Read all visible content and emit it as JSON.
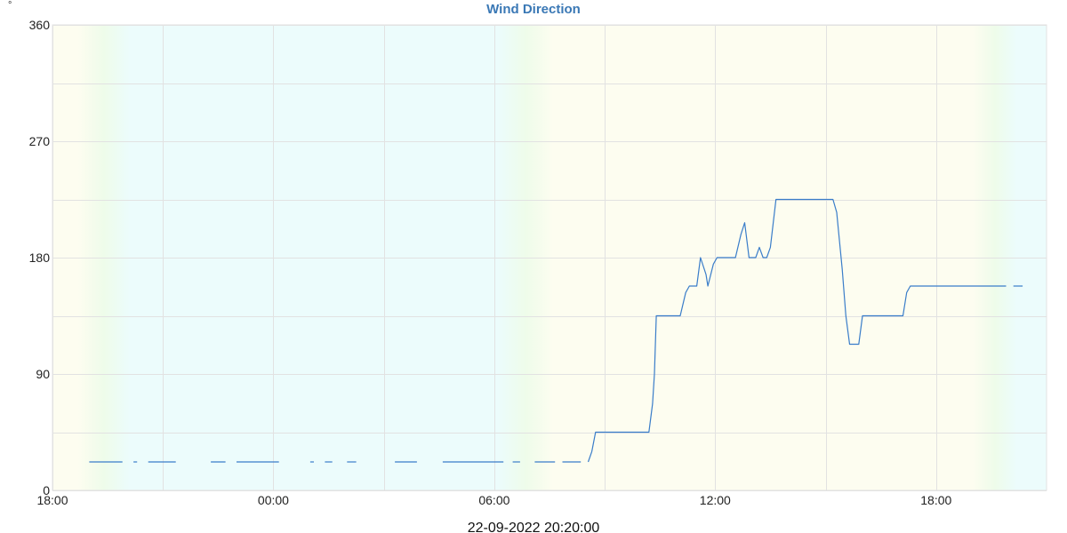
{
  "chart_data": {
    "type": "line",
    "title": "Wind Direction",
    "y_unit": "°",
    "footer_timestamp": "22-09-2022 20:20:00",
    "xlabel": "",
    "ylabel": "",
    "x_unit": "hours",
    "xlim": [
      18,
      45
    ],
    "ylim": [
      0,
      360
    ],
    "grid": true,
    "y_major_ticks": [
      {
        "value": 0,
        "label": "0"
      },
      {
        "value": 90,
        "label": "90"
      },
      {
        "value": 180,
        "label": "180"
      },
      {
        "value": 270,
        "label": "270"
      },
      {
        "value": 360,
        "label": "360"
      }
    ],
    "y_minor_gridlines": [
      45,
      135,
      225,
      315
    ],
    "x_ticks": [
      {
        "value": 18,
        "label": "18:00"
      },
      {
        "value": 24,
        "label": "00:00"
      },
      {
        "value": 30,
        "label": "06:00"
      },
      {
        "value": 36,
        "label": "12:00"
      },
      {
        "value": 42,
        "label": "18:00"
      }
    ],
    "x_minor_gridlines": [
      21,
      27,
      33,
      39
    ],
    "day_night_background": {
      "day_color": "#fdfdf0",
      "night_color": "#ecfcfc",
      "twilight_color": "#eefcea",
      "transitions": [
        {
          "from": "day",
          "to": "night",
          "start": 18.7,
          "end": 20.1
        },
        {
          "from": "night",
          "to": "day",
          "start": 30.1,
          "end": 31.6
        },
        {
          "from": "day",
          "to": "night",
          "start": 43.0,
          "end": 44.2
        }
      ]
    },
    "series": [
      {
        "color": "#3a7dc9",
        "segments": [
          [
            [
              19.0,
              22
            ],
            [
              19.9,
              22
            ]
          ],
          [
            [
              20.2,
              22
            ],
            [
              20.3,
              22
            ]
          ],
          [
            [
              20.6,
              22
            ],
            [
              21.35,
              22
            ]
          ],
          [
            [
              22.3,
              22
            ],
            [
              22.7,
              22
            ]
          ],
          [
            [
              23.0,
              22
            ],
            [
              24.15,
              22
            ]
          ],
          [
            [
              25.0,
              22
            ],
            [
              25.1,
              22
            ]
          ],
          [
            [
              25.4,
              22
            ],
            [
              25.6,
              22
            ]
          ],
          [
            [
              26.0,
              22
            ],
            [
              26.25,
              22
            ]
          ],
          [
            [
              27.3,
              22
            ],
            [
              27.9,
              22
            ]
          ],
          [
            [
              28.6,
              22
            ],
            [
              30.25,
              22
            ]
          ],
          [
            [
              30.5,
              22
            ],
            [
              30.7,
              22
            ]
          ],
          [
            [
              31.1,
              22
            ],
            [
              31.65,
              22
            ]
          ],
          [
            [
              31.85,
              22
            ],
            [
              32.35,
              22
            ]
          ],
          [
            [
              32.55,
              22
            ],
            [
              32.65,
              30
            ],
            [
              32.75,
              45
            ],
            [
              34.2,
              45
            ],
            [
              34.3,
              67
            ],
            [
              34.35,
              90
            ],
            [
              34.4,
              135
            ],
            [
              35.05,
              135
            ],
            [
              35.2,
              153
            ],
            [
              35.3,
              158
            ],
            [
              35.5,
              158
            ],
            [
              35.6,
              180
            ],
            [
              35.75,
              167
            ],
            [
              35.8,
              158
            ],
            [
              35.95,
              175
            ],
            [
              36.05,
              180
            ],
            [
              36.5,
              180
            ],
            [
              36.55,
              180
            ],
            [
              36.7,
              198
            ],
            [
              36.8,
              207
            ],
            [
              36.92,
              180
            ],
            [
              37.1,
              180
            ],
            [
              37.2,
              188
            ],
            [
              37.3,
              180
            ],
            [
              37.4,
              180
            ],
            [
              37.5,
              188
            ],
            [
              37.65,
              225
            ],
            [
              37.75,
              225
            ],
            [
              39.1,
              225
            ],
            [
              39.2,
              225
            ],
            [
              39.3,
              215
            ],
            [
              39.45,
              171
            ],
            [
              39.55,
              135
            ],
            [
              39.65,
              113
            ],
            [
              39.9,
              113
            ],
            [
              40.0,
              135
            ],
            [
              41.1,
              135
            ],
            [
              41.2,
              153
            ],
            [
              41.3,
              158
            ],
            [
              41.4,
              158
            ],
            [
              43.9,
              158
            ]
          ],
          [
            [
              44.1,
              158
            ],
            [
              44.35,
              158
            ]
          ]
        ]
      }
    ]
  }
}
